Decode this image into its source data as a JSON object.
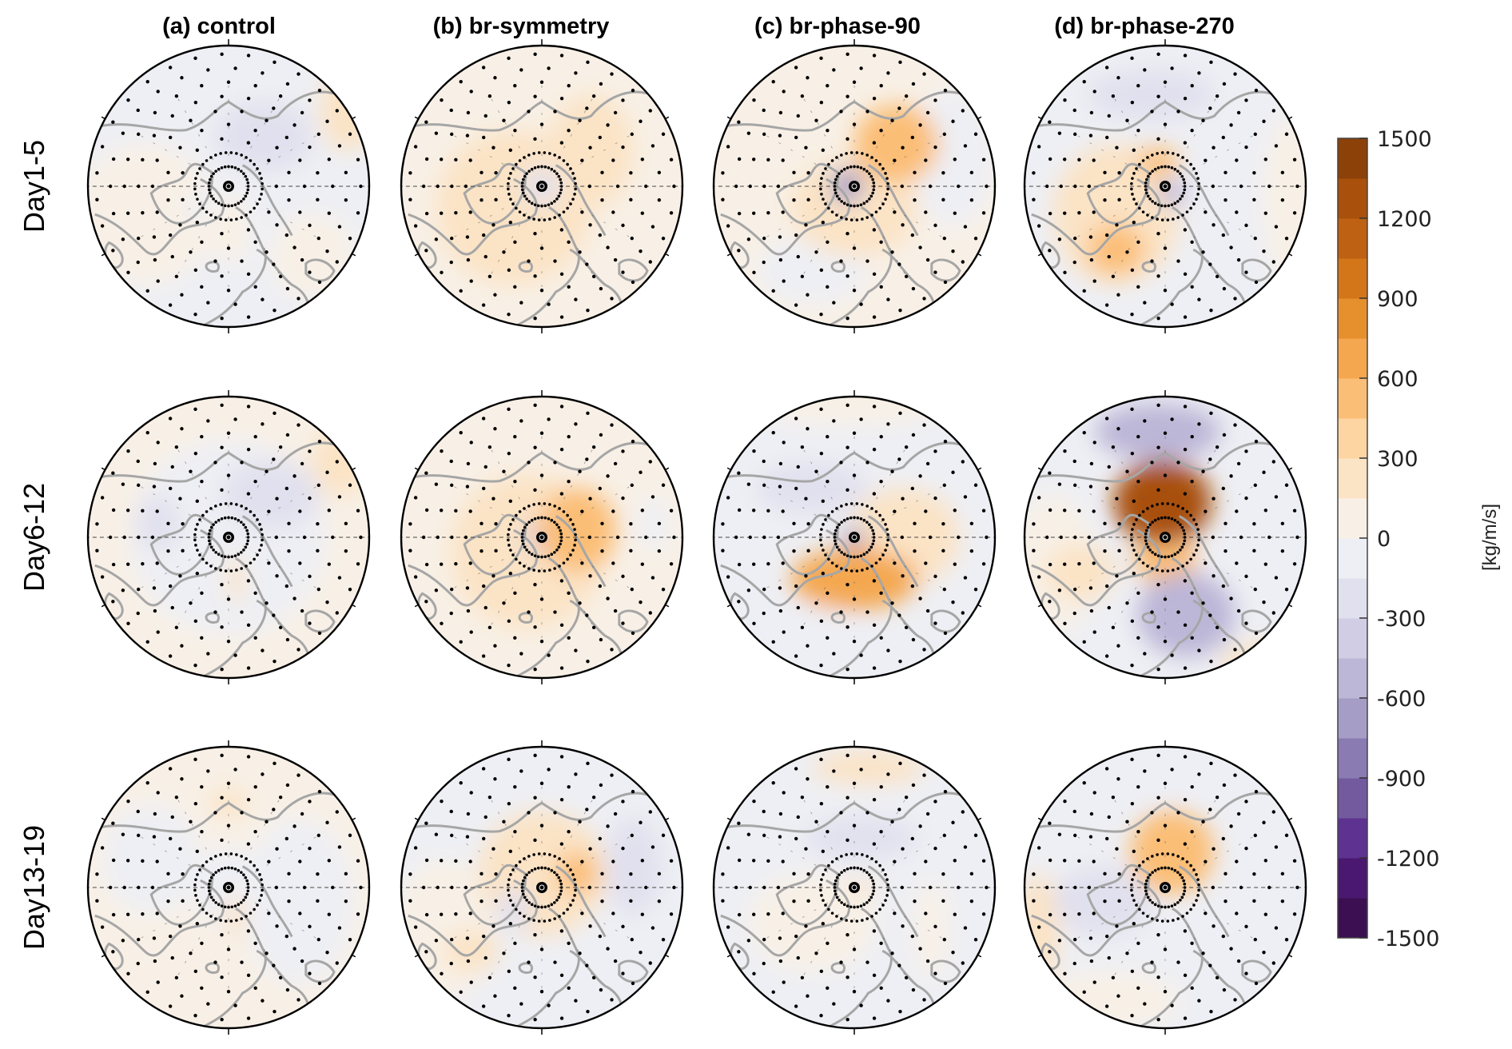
{
  "figure": {
    "column_titles": [
      "(a) control",
      "(b) br-symmetry",
      "(c) br-phase-90",
      "(d) br-phase-270"
    ],
    "row_labels": [
      "Day1-5",
      "Day6-12",
      "Day13-19"
    ]
  },
  "chart_data": {
    "type": "heatmap",
    "projection": "north-polar-stereographic",
    "title": "",
    "columns": [
      "(a) control",
      "(b) br-symmetry",
      "(c) br-phase-90",
      "(d) br-phase-270"
    ],
    "rows": [
      "Day1-5",
      "Day6-12",
      "Day13-19"
    ],
    "colorbar": {
      "label": "[kg/m/s]",
      "range": [
        -1500,
        1500
      ],
      "ticks": [
        1500,
        1200,
        900,
        600,
        300,
        0,
        -300,
        -600,
        -900,
        -1200,
        -1500
      ],
      "tick_labels": [
        "1500",
        "1200",
        "900",
        "600",
        "300",
        "0",
        "-300",
        "-600",
        "-900",
        "-1200",
        "-1500"
      ],
      "levels": [
        -1500,
        -1350,
        -1200,
        -1050,
        -900,
        -750,
        -600,
        -450,
        -300,
        -150,
        0,
        150,
        300,
        450,
        600,
        750,
        900,
        1050,
        1200,
        1350,
        1500
      ],
      "colors": [
        "#3b0f52",
        "#4a1870",
        "#5e3290",
        "#735a9f",
        "#8a7bb2",
        "#a59dc6",
        "#bcb6d7",
        "#d0cde4",
        "#e1e0ee",
        "#eeeff4",
        "#f8f0e6",
        "#fbe3c5",
        "#fdd5a3",
        "#fbbe76",
        "#f4a74f",
        "#e68f2d",
        "#d3761a",
        "#be6112",
        "#a8500c",
        "#8c4109"
      ]
    },
    "stippling": "dots mark statistically significant grid points",
    "panels": [
      {
        "row": "Day1-5",
        "column": "(a) control",
        "background": -50,
        "anomalies": [
          {
            "nx": 0.25,
            "ny": -0.35,
            "rx": 0.35,
            "ry": 0.25,
            "value": -250
          },
          {
            "nx": 0.85,
            "ny": -0.55,
            "rx": 0.2,
            "ry": 0.3,
            "value": 200
          },
          {
            "nx": -0.6,
            "ny": 0.2,
            "rx": 0.5,
            "ry": 0.5,
            "value": 60
          },
          {
            "nx": 0.6,
            "ny": 0.5,
            "rx": 0.3,
            "ry": 0.3,
            "value": 60
          },
          {
            "nx": -0.2,
            "ny": 0.15,
            "rx": 0.12,
            "ry": 0.1,
            "value": -150
          },
          {
            "nx": 0.0,
            "ny": 0.3,
            "rx": 0.15,
            "ry": 0.25,
            "value": 60
          }
        ]
      },
      {
        "row": "Day1-5",
        "column": "(b) br-symmetry",
        "background": 40,
        "anomalies": [
          {
            "nx": -0.2,
            "ny": 0.15,
            "rx": 0.55,
            "ry": 0.55,
            "value": 200
          },
          {
            "nx": 0.35,
            "ny": -0.25,
            "rx": 0.3,
            "ry": 0.4,
            "value": 200
          },
          {
            "nx": 0.0,
            "ny": 0.0,
            "rx": 0.13,
            "ry": 0.13,
            "value": -250
          }
        ]
      },
      {
        "row": "Day1-5",
        "column": "(c) br-phase-90",
        "background": 40,
        "anomalies": [
          {
            "nx": 0.3,
            "ny": -0.3,
            "rx": 0.3,
            "ry": 0.28,
            "value": 500
          },
          {
            "nx": 0.0,
            "ny": 0.15,
            "rx": 0.45,
            "ry": 0.35,
            "value": 250
          },
          {
            "nx": -0.05,
            "ny": 0.0,
            "rx": 0.12,
            "ry": 0.12,
            "value": -700
          },
          {
            "nx": 0.7,
            "ny": -0.2,
            "rx": 0.3,
            "ry": 0.5,
            "value": -60
          },
          {
            "nx": -0.3,
            "ny": 0.6,
            "rx": 0.4,
            "ry": 0.25,
            "value": -60
          }
        ]
      },
      {
        "row": "Day1-5",
        "column": "(d) br-phase-270",
        "background": -50,
        "anomalies": [
          {
            "nx": -0.1,
            "ny": -0.65,
            "rx": 0.45,
            "ry": 0.18,
            "value": -250
          },
          {
            "nx": -0.35,
            "ny": 0.2,
            "rx": 0.45,
            "ry": 0.5,
            "value": 280
          },
          {
            "nx": -0.35,
            "ny": 0.45,
            "rx": 0.2,
            "ry": 0.18,
            "value": 450
          },
          {
            "nx": -0.05,
            "ny": -0.18,
            "rx": 0.15,
            "ry": 0.1,
            "value": 500
          },
          {
            "nx": 0.05,
            "ny": 0.05,
            "rx": 0.1,
            "ry": 0.1,
            "value": -600
          },
          {
            "nx": 0.9,
            "ny": 0.1,
            "rx": 0.2,
            "ry": 0.6,
            "value": 60
          }
        ]
      },
      {
        "row": "Day6-12",
        "column": "(a) control",
        "background": 50,
        "anomalies": [
          {
            "nx": 0.0,
            "ny": 0.0,
            "rx": 0.7,
            "ry": 0.7,
            "value": -60
          },
          {
            "nx": 0.3,
            "ny": -0.3,
            "rx": 0.35,
            "ry": 0.25,
            "value": -250
          },
          {
            "nx": -0.5,
            "ny": -0.1,
            "rx": 0.15,
            "ry": 0.2,
            "value": -180
          },
          {
            "nx": 0.8,
            "ny": -0.55,
            "rx": 0.2,
            "ry": 0.25,
            "value": 180
          },
          {
            "nx": 0.05,
            "ny": 0.3,
            "rx": 0.06,
            "ry": 0.18,
            "value": 150
          }
        ]
      },
      {
        "row": "Day6-12",
        "column": "(b) br-symmetry",
        "background": 40,
        "anomalies": [
          {
            "nx": -0.1,
            "ny": 0.1,
            "rx": 0.55,
            "ry": 0.55,
            "value": 250
          },
          {
            "nx": 0.25,
            "ny": -0.05,
            "rx": 0.28,
            "ry": 0.3,
            "value": 500
          },
          {
            "nx": 0.8,
            "ny": -0.1,
            "rx": 0.12,
            "ry": 0.2,
            "value": -120
          },
          {
            "nx": 0.0,
            "ny": 0.0,
            "rx": 0.12,
            "ry": 0.12,
            "value": -400
          }
        ]
      },
      {
        "row": "Day6-12",
        "column": "(c) br-phase-90",
        "background": -60,
        "anomalies": [
          {
            "nx": 0.0,
            "ny": 0.3,
            "rx": 0.45,
            "ry": 0.22,
            "value": 650
          },
          {
            "nx": 0.35,
            "ny": 0.0,
            "rx": 0.4,
            "ry": 0.35,
            "value": 200
          },
          {
            "nx": -0.3,
            "ny": -0.35,
            "rx": 0.4,
            "ry": 0.18,
            "value": -180
          },
          {
            "nx": 0.0,
            "ny": 0.0,
            "rx": 0.08,
            "ry": 0.08,
            "value": -700
          },
          {
            "nx": -0.3,
            "ny": 0.7,
            "rx": 0.35,
            "ry": 0.2,
            "value": -120
          },
          {
            "nx": 0.0,
            "ny": -0.95,
            "rx": 0.7,
            "ry": 0.15,
            "value": 60
          }
        ]
      },
      {
        "row": "Day6-12",
        "column": "(d) br-phase-270",
        "background": -60,
        "anomalies": [
          {
            "nx": -0.05,
            "ny": -0.75,
            "rx": 0.45,
            "ry": 0.2,
            "value": -550
          },
          {
            "nx": -0.02,
            "ny": -0.25,
            "rx": 0.35,
            "ry": 0.3,
            "value": 1300
          },
          {
            "nx": 0.0,
            "ny": 0.15,
            "rx": 0.22,
            "ry": 0.18,
            "value": 500
          },
          {
            "nx": -0.6,
            "ny": 0.25,
            "rx": 0.25,
            "ry": 0.2,
            "value": 250
          },
          {
            "nx": 0.1,
            "ny": 0.0,
            "rx": 0.08,
            "ry": 0.08,
            "value": -450
          },
          {
            "nx": 0.15,
            "ny": 0.55,
            "rx": 0.35,
            "ry": 0.3,
            "value": -500
          },
          {
            "nx": -0.8,
            "ny": 0.2,
            "rx": 0.3,
            "ry": 0.5,
            "value": 60
          },
          {
            "nx": 0.7,
            "ny": 0.9,
            "rx": 0.3,
            "ry": 0.15,
            "value": 150
          }
        ]
      },
      {
        "row": "Day13-19",
        "column": "(a) control",
        "background": 50,
        "anomalies": [
          {
            "nx": 0.0,
            "ny": 0.0,
            "rx": 0.25,
            "ry": 0.3,
            "value": -60
          },
          {
            "nx": 0.0,
            "ny": -0.6,
            "rx": 0.13,
            "ry": 0.1,
            "value": 180
          },
          {
            "nx": 0.5,
            "ny": 0.1,
            "rx": 0.4,
            "ry": 0.6,
            "value": -60
          },
          {
            "nx": -0.55,
            "ny": -0.2,
            "rx": 0.35,
            "ry": 0.4,
            "value": -60
          },
          {
            "nx": 0.05,
            "ny": 0.2,
            "rx": 0.07,
            "ry": 0.15,
            "value": 150
          }
        ]
      },
      {
        "row": "Day13-19",
        "column": "(b) br-symmetry",
        "background": -50,
        "anomalies": [
          {
            "nx": 0.0,
            "ny": -0.1,
            "rx": 0.45,
            "ry": 0.45,
            "value": 180
          },
          {
            "nx": 0.25,
            "ny": -0.1,
            "rx": 0.15,
            "ry": 0.15,
            "value": 450
          },
          {
            "nx": 0.65,
            "ny": -0.15,
            "rx": 0.2,
            "ry": 0.35,
            "value": -250
          },
          {
            "nx": -0.5,
            "ny": 0.45,
            "rx": 0.2,
            "ry": 0.15,
            "value": 250
          },
          {
            "nx": -0.2,
            "ny": 0.15,
            "rx": 0.12,
            "ry": 0.15,
            "value": -200
          },
          {
            "nx": -0.7,
            "ny": 0.3,
            "rx": 0.35,
            "ry": 0.5,
            "value": 60
          }
        ]
      },
      {
        "row": "Day13-19",
        "column": "(c) br-phase-90",
        "background": -50,
        "anomalies": [
          {
            "nx": 0.05,
            "ny": -0.35,
            "rx": 0.4,
            "ry": 0.15,
            "value": -300
          },
          {
            "nx": 0.1,
            "ny": -0.85,
            "rx": 0.4,
            "ry": 0.12,
            "value": 180
          },
          {
            "nx": -0.3,
            "ny": 0.25,
            "rx": 0.45,
            "ry": 0.35,
            "value": 60
          },
          {
            "nx": 0.05,
            "ny": 0.0,
            "rx": 0.12,
            "ry": 0.05,
            "value": 150
          },
          {
            "nx": 0.55,
            "ny": 0.3,
            "rx": 0.12,
            "ry": 0.35,
            "value": 60
          },
          {
            "nx": -0.65,
            "ny": -0.3,
            "rx": 0.08,
            "ry": 0.1,
            "value": -150
          }
        ]
      },
      {
        "row": "Day13-19",
        "column": "(d) br-phase-270",
        "background": -60,
        "anomalies": [
          {
            "nx": 0.05,
            "ny": -0.25,
            "rx": 0.3,
            "ry": 0.3,
            "value": 500
          },
          {
            "nx": -0.45,
            "ny": 0.1,
            "rx": 0.35,
            "ry": 0.25,
            "value": -220
          },
          {
            "nx": 0.3,
            "ny": 0.45,
            "rx": 0.35,
            "ry": 0.2,
            "value": -150
          },
          {
            "nx": -0.1,
            "ny": -0.8,
            "rx": 0.4,
            "ry": 0.15,
            "value": -150
          },
          {
            "nx": -0.9,
            "ny": 0.3,
            "rx": 0.15,
            "ry": 0.4,
            "value": 150
          },
          {
            "nx": -0.4,
            "ny": 0.8,
            "rx": 0.5,
            "ry": 0.2,
            "value": 60
          }
        ]
      }
    ]
  }
}
